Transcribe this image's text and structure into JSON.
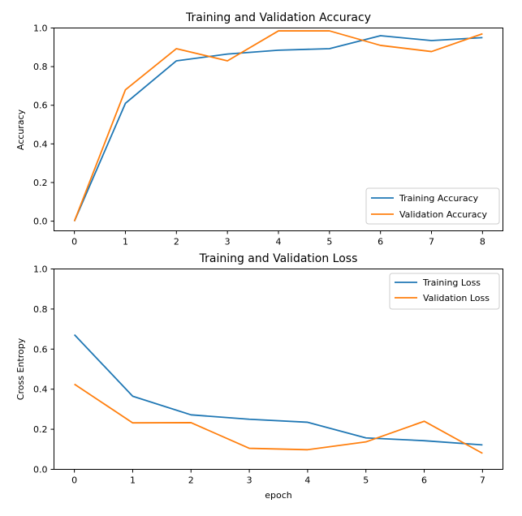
{
  "colors": {
    "training": "#1f77b4",
    "validation": "#ff7f0e"
  },
  "chart_data": [
    {
      "type": "line",
      "title": "Training and Validation Accuracy",
      "xlabel": "",
      "ylabel": "Accuracy",
      "xlim": [
        -0.4,
        8.4
      ],
      "ylim": [
        -0.05,
        1.0
      ],
      "xticks": [
        0,
        1,
        2,
        3,
        4,
        5,
        6,
        7,
        8
      ],
      "yticks": [
        "0.0",
        "0.2",
        "0.4",
        "0.6",
        "0.8",
        "1.0"
      ],
      "legend_position": "lower-right",
      "grid": false,
      "series": [
        {
          "name": "Training Accuracy",
          "color": "#1f77b4",
          "x": [
            0,
            1,
            2,
            3,
            4,
            5,
            6,
            7,
            8
          ],
          "y": [
            0.0,
            0.61,
            0.83,
            0.865,
            0.885,
            0.893,
            0.96,
            0.935,
            0.95
          ]
        },
        {
          "name": "Validation Accuracy",
          "color": "#ff7f0e",
          "x": [
            0,
            1,
            2,
            3,
            4,
            5,
            6,
            7,
            8
          ],
          "y": [
            0.0,
            0.68,
            0.893,
            0.83,
            0.985,
            0.985,
            0.91,
            0.878,
            0.97
          ]
        }
      ]
    },
    {
      "type": "line",
      "title": "Training and Validation Loss",
      "xlabel": "epoch",
      "ylabel": "Cross Entropy",
      "xlim": [
        -0.35,
        7.35
      ],
      "ylim": [
        0.0,
        1.0
      ],
      "xticks": [
        0,
        1,
        2,
        3,
        4,
        5,
        6,
        7
      ],
      "yticks": [
        "0.0",
        "0.2",
        "0.4",
        "0.6",
        "0.8",
        "1.0"
      ],
      "legend_position": "upper-right",
      "grid": false,
      "series": [
        {
          "name": "Training Loss",
          "color": "#1f77b4",
          "x": [
            0,
            1,
            2,
            3,
            4,
            5,
            6,
            7
          ],
          "y": [
            0.672,
            0.365,
            0.272,
            0.25,
            0.235,
            0.157,
            0.143,
            0.122
          ]
        },
        {
          "name": "Validation Loss",
          "color": "#ff7f0e",
          "x": [
            0,
            1,
            2,
            3,
            4,
            5,
            6,
            7
          ],
          "y": [
            0.425,
            0.232,
            0.233,
            0.105,
            0.098,
            0.137,
            0.24,
            0.08
          ]
        }
      ]
    }
  ]
}
